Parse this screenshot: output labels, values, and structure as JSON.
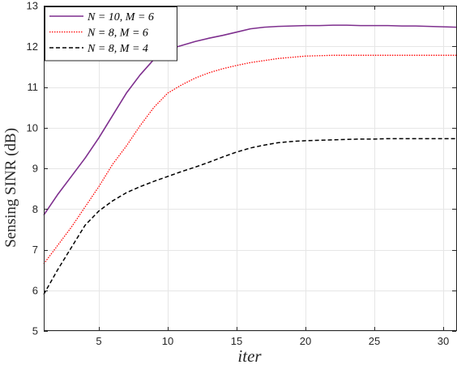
{
  "chart_data": {
    "type": "line",
    "xlabel": "iter",
    "ylabel": "Sensing SINR (dB)",
    "xlim": [
      1,
      31
    ],
    "ylim": [
      5,
      13
    ],
    "xticks": [
      5,
      10,
      15,
      20,
      25,
      30
    ],
    "yticks": [
      5,
      6,
      7,
      8,
      9,
      10,
      11,
      12,
      13
    ],
    "grid": true,
    "legend_position": "top-left",
    "series": [
      {
        "name": "N = 10, M = 6",
        "color": "#7e2f8e",
        "style": "solid",
        "x": [
          1,
          2,
          3,
          4,
          5,
          6,
          7,
          8,
          9,
          10,
          11,
          12,
          13,
          14,
          15,
          16,
          17,
          18,
          19,
          20,
          21,
          22,
          23,
          24,
          25,
          26,
          27,
          28,
          29,
          30,
          31
        ],
        "y": [
          7.85,
          8.35,
          8.8,
          9.25,
          9.75,
          10.3,
          10.85,
          11.3,
          11.68,
          11.92,
          12.02,
          12.12,
          12.2,
          12.27,
          12.35,
          12.43,
          12.47,
          12.49,
          12.5,
          12.51,
          12.51,
          12.52,
          12.52,
          12.51,
          12.51,
          12.51,
          12.5,
          12.5,
          12.49,
          12.48,
          12.47
        ]
      },
      {
        "name": "N = 8, M = 6",
        "color": "#ff0000",
        "style": "dotted",
        "x": [
          1,
          2,
          3,
          4,
          5,
          6,
          7,
          8,
          9,
          10,
          11,
          12,
          13,
          14,
          15,
          16,
          17,
          18,
          19,
          20,
          21,
          22,
          23,
          24,
          25,
          26,
          27,
          28,
          29,
          30,
          31
        ],
        "y": [
          6.65,
          7.1,
          7.55,
          8.05,
          8.55,
          9.1,
          9.55,
          10.05,
          10.5,
          10.85,
          11.05,
          11.22,
          11.35,
          11.45,
          11.53,
          11.6,
          11.65,
          11.7,
          11.73,
          11.76,
          11.77,
          11.78,
          11.78,
          11.78,
          11.78,
          11.78,
          11.78,
          11.78,
          11.78,
          11.78,
          11.78
        ]
      },
      {
        "name": "N = 8, M = 4",
        "color": "#000000",
        "style": "dashed",
        "x": [
          1,
          2,
          3,
          4,
          5,
          6,
          7,
          8,
          9,
          10,
          11,
          12,
          13,
          14,
          15,
          16,
          17,
          18,
          19,
          20,
          21,
          22,
          23,
          24,
          25,
          26,
          27,
          28,
          29,
          30,
          31
        ],
        "y": [
          5.9,
          6.5,
          7.05,
          7.6,
          7.95,
          8.2,
          8.4,
          8.55,
          8.68,
          8.8,
          8.92,
          9.03,
          9.15,
          9.28,
          9.4,
          9.5,
          9.57,
          9.63,
          9.66,
          9.68,
          9.69,
          9.7,
          9.71,
          9.72,
          9.72,
          9.73,
          9.73,
          9.73,
          9.73,
          9.73,
          9.73
        ]
      }
    ]
  }
}
